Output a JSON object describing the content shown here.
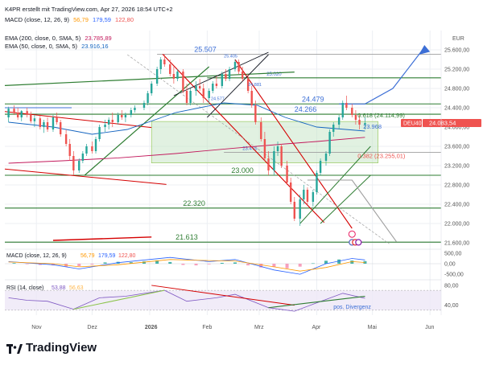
{
  "header": {
    "caption": "K4PR erstellt mit TradingView.com, Apr 27, 2026 18:54 UTC+2",
    "macd_top": {
      "label": "MACD (close, 12, 26, 9)",
      "v1": "56,79",
      "v2": "179,59",
      "v3": "122,80"
    },
    "ema200": {
      "label": "EMA (200, close, 0, SMA, 5)",
      "value": "23.785,89"
    },
    "ema50": {
      "label": "EMA (50, close, 0, SMA, 5)",
      "value": "23.916,16"
    }
  },
  "brand": {
    "name": "TradingView"
  },
  "colors": {
    "up": "#26a69a",
    "down": "#ef5350",
    "green_line": "#2e7d32",
    "red_line": "#d50000",
    "blue_line": "#3d6fd6",
    "ema200": "#c2185b",
    "ema50": "#1565c0",
    "zone_fill": "#c8e6c9",
    "grid": "#eceff3",
    "text": "#131722",
    "axis_text": "#555555"
  },
  "chart_data": {
    "type": "candlestick",
    "instrument": "DEU40",
    "currency": "EUR",
    "last_price": 24083.54,
    "last_price_label": "24.083,54",
    "ylim": [
      21500,
      26000
    ],
    "y_ticks": [
      21600,
      22000,
      22400,
      22800,
      23200,
      23600,
      24000,
      24400,
      24800,
      25200,
      25600
    ],
    "y_tick_labels": [
      "21.600,00",
      "22.000,00",
      "22.400,00",
      "22.800,00",
      "23.200,00",
      "23.600,00",
      "24.000,00",
      "24.400,00",
      "24.800,00",
      "25.200,00",
      "25.600,00"
    ],
    "x_range": [
      "2025-10-15",
      "2026-06-07"
    ],
    "x_ticks": [
      {
        "date": "2025-11-01",
        "label": "Nov"
      },
      {
        "date": "2025-12-01",
        "label": "Dez"
      },
      {
        "date": "2026-01-01",
        "label": "2026"
      },
      {
        "date": "2026-02-01",
        "label": "Feb"
      },
      {
        "date": "2026-03-01",
        "label": "Mrz"
      },
      {
        "date": "2026-04-01",
        "label": "Apr"
      },
      {
        "date": "2026-05-01",
        "label": "Mai"
      },
      {
        "date": "2026-06-01",
        "label": "Jun"
      }
    ],
    "candles": [
      [
        "2025-10-17",
        24200,
        24420,
        24100,
        24380
      ],
      [
        "2025-10-20",
        24380,
        24450,
        24250,
        24300
      ],
      [
        "2025-10-22",
        24300,
        24400,
        24150,
        24200
      ],
      [
        "2025-10-24",
        24200,
        24350,
        24120,
        24330
      ],
      [
        "2025-10-27",
        24330,
        24400,
        24200,
        24250
      ],
      [
        "2025-10-29",
        24250,
        24320,
        24080,
        24120
      ],
      [
        "2025-10-31",
        24120,
        24250,
        24000,
        24180
      ],
      [
        "2025-11-03",
        24180,
        24260,
        23950,
        24000
      ],
      [
        "2025-11-05",
        24000,
        24150,
        23880,
        24100
      ],
      [
        "2025-11-07",
        24100,
        24200,
        23900,
        23950
      ],
      [
        "2025-11-10",
        23950,
        24250,
        23900,
        24200
      ],
      [
        "2025-11-12",
        24200,
        24300,
        24050,
        24100
      ],
      [
        "2025-11-14",
        24100,
        24150,
        23800,
        23850
      ],
      [
        "2025-11-17",
        23850,
        23950,
        23600,
        23650
      ],
      [
        "2025-11-19",
        23650,
        23750,
        23300,
        23400
      ],
      [
        "2025-11-21",
        23400,
        23500,
        23000,
        23100
      ],
      [
        "2025-11-24",
        23100,
        23350,
        23050,
        23300
      ],
      [
        "2025-11-26",
        23300,
        23500,
        23250,
        23450
      ],
      [
        "2025-11-28",
        23450,
        23650,
        23400,
        23600
      ],
      [
        "2025-12-01",
        23600,
        23700,
        23450,
        23500
      ],
      [
        "2025-12-03",
        23500,
        23800,
        23450,
        23750
      ],
      [
        "2025-12-05",
        23750,
        24050,
        23700,
        24000
      ],
      [
        "2025-12-08",
        24000,
        24150,
        23900,
        24050
      ],
      [
        "2025-12-10",
        24050,
        24200,
        23950,
        24150
      ],
      [
        "2025-12-12",
        24150,
        24300,
        24000,
        24100
      ],
      [
        "2025-12-15",
        24100,
        24300,
        24050,
        24250
      ],
      [
        "2025-12-17",
        24250,
        24350,
        24150,
        24200
      ],
      [
        "2025-12-19",
        24200,
        24300,
        24100,
        24250
      ],
      [
        "2025-12-22",
        24250,
        24400,
        24200,
        24350
      ],
      [
        "2025-12-24",
        24350,
        24450,
        24300,
        24400
      ],
      [
        "2025-12-29",
        24400,
        24550,
        24350,
        24500
      ],
      [
        "2025-12-31",
        24500,
        24750,
        24450,
        24700
      ],
      [
        "2026-01-02",
        24700,
        24950,
        24650,
        24900
      ],
      [
        "2026-01-05",
        24900,
        25250,
        24850,
        25200
      ],
      [
        "2026-01-07",
        25200,
        25450,
        25100,
        25400
      ],
      [
        "2026-01-09",
        25400,
        25507,
        25250,
        25300
      ],
      [
        "2026-01-12",
        25300,
        25400,
        25050,
        25100
      ],
      [
        "2026-01-14",
        25100,
        25250,
        24900,
        25000
      ],
      [
        "2026-01-16",
        25000,
        25200,
        24950,
        25150
      ],
      [
        "2026-01-19",
        25150,
        25200,
        24700,
        24750
      ],
      [
        "2026-01-21",
        24750,
        24900,
        24450,
        24500
      ],
      [
        "2026-01-23",
        24500,
        24800,
        24450,
        24750
      ],
      [
        "2026-01-26",
        24750,
        24950,
        24650,
        24850
      ],
      [
        "2026-01-28",
        24850,
        25000,
        24750,
        24800
      ],
      [
        "2026-01-30",
        24800,
        24900,
        24500,
        24600
      ],
      [
        "2026-02-02",
        24600,
        24800,
        24500,
        24750
      ],
      [
        "2026-02-04",
        24750,
        24950,
        24700,
        24900
      ],
      [
        "2026-02-06",
        24900,
        25050,
        24800,
        24850
      ],
      [
        "2026-02-09",
        24850,
        25150,
        24800,
        25100
      ],
      [
        "2026-02-11",
        25100,
        25200,
        24950,
        25000
      ],
      [
        "2026-02-13",
        25000,
        25250,
        24950,
        25200
      ],
      [
        "2026-02-16",
        25200,
        25405,
        25150,
        25350
      ],
      [
        "2026-02-18",
        25350,
        25400,
        25100,
        25150
      ],
      [
        "2026-02-20",
        25150,
        25250,
        24950,
        25000
      ],
      [
        "2026-02-23",
        25000,
        25100,
        24700,
        24750
      ],
      [
        "2026-02-25",
        24750,
        24850,
        24400,
        24450
      ],
      [
        "2026-02-27",
        24450,
        24550,
        24050,
        24100
      ],
      [
        "2026-03-02",
        24100,
        24200,
        23700,
        23750
      ],
      [
        "2026-03-04",
        23750,
        23900,
        23300,
        23350
      ],
      [
        "2026-03-06",
        23350,
        23500,
        23000,
        23100
      ],
      [
        "2026-03-09",
        23100,
        23600,
        23000,
        23500
      ],
      [
        "2026-03-11",
        23500,
        23700,
        23400,
        23600
      ],
      [
        "2026-03-13",
        23600,
        23650,
        23150,
        23200
      ],
      [
        "2026-03-16",
        23200,
        23300,
        22800,
        22850
      ],
      [
        "2026-03-18",
        22850,
        22950,
        22400,
        22450
      ],
      [
        "2026-03-20",
        22450,
        22550,
        22050,
        22100
      ],
      [
        "2026-03-23",
        22100,
        22600,
        21950,
        22500
      ],
      [
        "2026-03-25",
        22500,
        22800,
        22400,
        22700
      ],
      [
        "2026-03-27",
        22700,
        22750,
        22400,
        22450
      ],
      [
        "2026-03-30",
        22450,
        22700,
        22350,
        22650
      ],
      [
        "2026-04-01",
        22650,
        23100,
        22600,
        23050
      ],
      [
        "2026-04-03",
        23050,
        23350,
        23000,
        23300
      ],
      [
        "2026-04-06",
        23300,
        23500,
        23200,
        23450
      ],
      [
        "2026-04-08",
        23450,
        23950,
        23400,
        23900
      ],
      [
        "2026-04-10",
        23900,
        24100,
        23800,
        24050
      ],
      [
        "2026-04-13",
        24050,
        24250,
        23950,
        24200
      ],
      [
        "2026-04-15",
        24200,
        24550,
        24150,
        24500
      ],
      [
        "2026-04-17",
        24500,
        24650,
        24350,
        24400
      ],
      [
        "2026-04-20",
        24400,
        24479,
        24200,
        24250
      ],
      [
        "2026-04-22",
        24250,
        24350,
        24050,
        24150
      ],
      [
        "2026-04-24",
        24150,
        24250,
        23950,
        24050
      ],
      [
        "2026-04-27",
        24050,
        24200,
        23950,
        24083.54
      ]
    ],
    "ema200_series": [
      [
        "2025-10-17",
        23250
      ],
      [
        "2025-11-15",
        23300
      ],
      [
        "2025-12-15",
        23360
      ],
      [
        "2026-01-15",
        23450
      ],
      [
        "2026-02-15",
        23560
      ],
      [
        "2026-03-15",
        23650
      ],
      [
        "2026-04-01",
        23700
      ],
      [
        "2026-04-27",
        23786
      ]
    ],
    "ema50_series": [
      [
        "2025-10-17",
        24100
      ],
      [
        "2025-11-10",
        24000
      ],
      [
        "2025-12-01",
        23850
      ],
      [
        "2025-12-20",
        23950
      ],
      [
        "2026-01-15",
        24300
      ],
      [
        "2026-02-10",
        24500
      ],
      [
        "2026-02-28",
        24450
      ],
      [
        "2026-03-15",
        24200
      ],
      [
        "2026-04-01",
        24000
      ],
      [
        "2026-04-27",
        23916
      ]
    ],
    "horizontal_levels": [
      {
        "y": 25507,
        "label": "25.507",
        "color": "#9e9e9e"
      },
      {
        "y": 25020,
        "label": "25.020",
        "color": "#2e7d32"
      },
      {
        "y": 24479,
        "label": "24.479",
        "color": "#2e7d32"
      },
      {
        "y": 24266,
        "label": "24.266",
        "color": "#2e7d32"
      },
      {
        "y": 23476,
        "label": "23.476",
        "color": "#9e9e9e"
      },
      {
        "y": 23000,
        "label": "23.000",
        "color": "#2e7d32"
      },
      {
        "y": 22320,
        "label": "22.320",
        "color": "#2e7d32"
      },
      {
        "y": 21613,
        "label": "21.613",
        "color": "#2e7d32"
      }
    ],
    "fib_labels": [
      {
        "text": "0.618 (24.114,99)",
        "y": 24200
      },
      {
        "text": "0.382 (23.255,01)",
        "y": 23360
      }
    ],
    "annotations": [
      {
        "text": "23.968",
        "x": "2026-04-26",
        "y": 23968
      },
      {
        "text": "25.405",
        "x": "2026-02-10",
        "y": 25440
      },
      {
        "text": "24.881",
        "x": "2026-02-23",
        "y": 24850
      },
      {
        "text": "24.577",
        "x": "2026-02-03",
        "y": 24560
      }
    ],
    "zone": {
      "x_from": "2026-01-02",
      "x_to": "2026-05-04",
      "y_from": 23255,
      "y_to": 24115
    },
    "macd_panel": {
      "label": "MACD (close, 12, 26, 9)",
      "values_text": [
        "56,79",
        "179,59",
        "122,80"
      ],
      "y_ticks": [
        -500,
        0,
        500
      ],
      "y_tick_labels": [
        "-500,00",
        "0,00",
        "500,00"
      ],
      "ylim": [
        -650,
        650
      ],
      "histogram": [
        [
          "2025-10-20",
          30
        ],
        [
          "2025-10-27",
          -20
        ],
        [
          "2025-11-03",
          -60
        ],
        [
          "2025-11-10",
          -80
        ],
        [
          "2025-11-17",
          -150
        ],
        [
          "2025-11-24",
          -120
        ],
        [
          "2025-12-01",
          -40
        ],
        [
          "2025-12-08",
          60
        ],
        [
          "2025-12-15",
          90
        ],
        [
          "2025-12-22",
          70
        ],
        [
          "2025-12-29",
          110
        ],
        [
          "2026-01-05",
          160
        ],
        [
          "2026-01-12",
          80
        ],
        [
          "2026-01-19",
          -60
        ],
        [
          "2026-01-26",
          -80
        ],
        [
          "2026-02-02",
          -30
        ],
        [
          "2026-02-09",
          40
        ],
        [
          "2026-02-16",
          60
        ],
        [
          "2026-02-23",
          -80
        ],
        [
          "2026-03-02",
          -180
        ],
        [
          "2026-03-09",
          -160
        ],
        [
          "2026-03-16",
          -220
        ],
        [
          "2026-03-23",
          -140
        ],
        [
          "2026-03-30",
          20
        ],
        [
          "2026-04-06",
          140
        ],
        [
          "2026-04-13",
          200
        ],
        [
          "2026-04-20",
          150
        ],
        [
          "2026-04-27",
          123
        ]
      ],
      "macd_line": [
        [
          "2025-10-17",
          100
        ],
        [
          "2025-11-10",
          -50
        ],
        [
          "2025-11-24",
          -250
        ],
        [
          "2025-12-15",
          50
        ],
        [
          "2026-01-12",
          300
        ],
        [
          "2026-02-02",
          100
        ],
        [
          "2026-02-16",
          200
        ],
        [
          "2026-03-09",
          -300
        ],
        [
          "2026-03-23",
          -500
        ],
        [
          "2026-04-06",
          0
        ],
        [
          "2026-04-20",
          250
        ],
        [
          "2026-04-27",
          180
        ]
      ],
      "signal_line": [
        [
          "2025-10-17",
          80
        ],
        [
          "2025-11-10",
          0
        ],
        [
          "2025-11-24",
          -150
        ],
        [
          "2025-12-15",
          -50
        ],
        [
          "2026-01-12",
          200
        ],
        [
          "2026-02-02",
          150
        ],
        [
          "2026-02-16",
          130
        ],
        [
          "2026-03-09",
          -150
        ],
        [
          "2026-03-23",
          -350
        ],
        [
          "2026-04-06",
          -180
        ],
        [
          "2026-04-20",
          100
        ],
        [
          "2026-04-27",
          57
        ]
      ]
    },
    "rsi_panel": {
      "label": "RSI (14, close)",
      "values_text": [
        "53,88",
        "56,63"
      ],
      "y_ticks": [
        40,
        80
      ],
      "y_tick_labels": [
        "40,00",
        "80,00"
      ],
      "ylim": [
        20,
        88
      ],
      "band": [
        30,
        70
      ],
      "rsi_line": [
        [
          "2025-10-17",
          55
        ],
        [
          "2025-10-27",
          50
        ],
        [
          "2025-11-07",
          48
        ],
        [
          "2025-11-21",
          32
        ],
        [
          "2025-12-05",
          55
        ],
        [
          "2025-12-19",
          58
        ],
        [
          "2026-01-09",
          70
        ],
        [
          "2026-01-21",
          48
        ],
        [
          "2026-02-06",
          55
        ],
        [
          "2026-02-16",
          62
        ],
        [
          "2026-03-06",
          35
        ],
        [
          "2026-03-20",
          28
        ],
        [
          "2026-03-30",
          42
        ],
        [
          "2026-04-15",
          64
        ],
        [
          "2026-04-27",
          54
        ]
      ],
      "divergence_label": "pos. Divergenz"
    }
  }
}
